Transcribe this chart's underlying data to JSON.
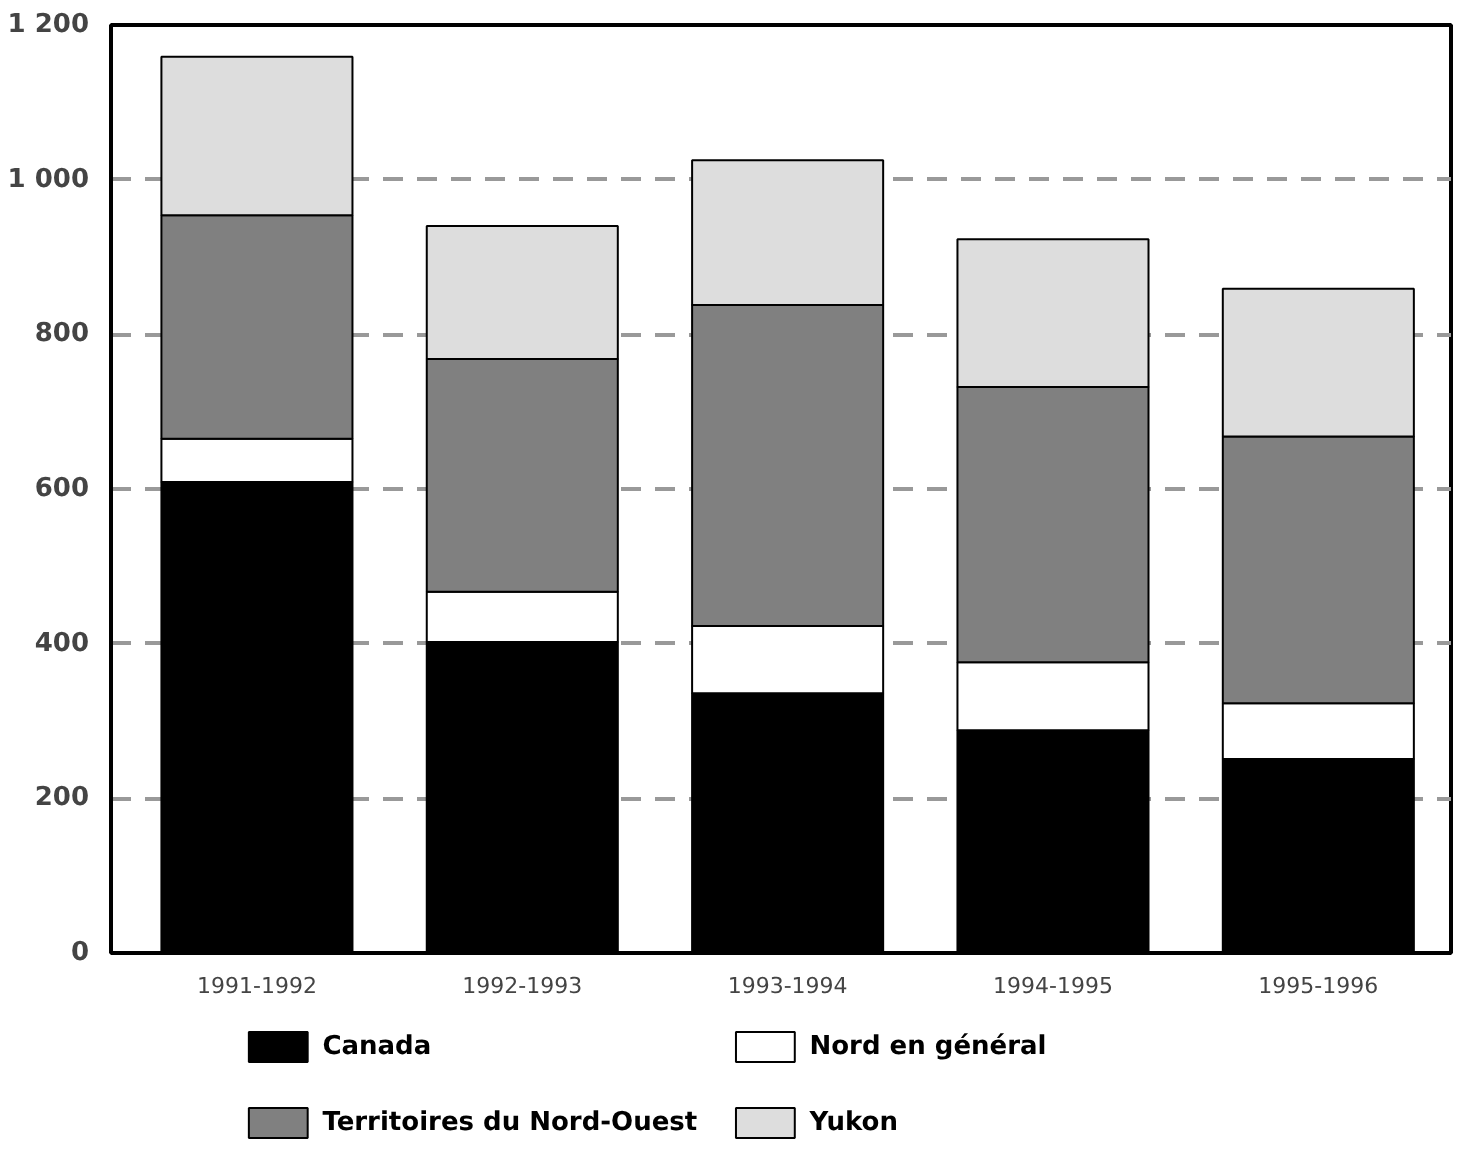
{
  "chart_data": {
    "type": "bar",
    "stacked": true,
    "categories": [
      "1991-1992",
      "1992-1993",
      "1993-1994",
      "1994-1995",
      "1995-1996"
    ],
    "series": [
      {
        "name": "Canada",
        "color": "#000000",
        "values": [
          609,
          402,
          336,
          288,
          251
        ]
      },
      {
        "name": "Nord en général",
        "color": "#ffffff",
        "values": [
          56,
          65,
          87,
          88,
          72
        ]
      },
      {
        "name": "Territoires du Nord-Ouest",
        "color": "#808080",
        "values": [
          289,
          301,
          415,
          356,
          345
        ]
      },
      {
        "name": "Yukon",
        "color": "#dddddd",
        "values": [
          205,
          172,
          187,
          191,
          191
        ]
      }
    ],
    "ylim": [
      0,
      1200
    ],
    "yticks": [
      0,
      200,
      400,
      600,
      800,
      {
        "value": 1000,
        "label": "1 000"
      },
      {
        "value": 1200,
        "label": "1 200"
      }
    ],
    "grid": "y",
    "legend": "bottom"
  }
}
